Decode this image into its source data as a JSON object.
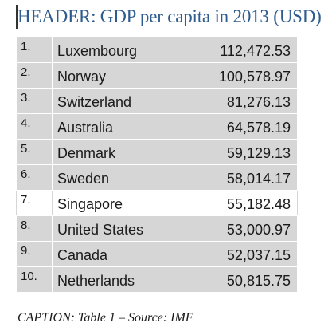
{
  "header": {
    "text": "HEADER: GDP per capita in 2013 (USD)"
  },
  "table": {
    "rows": [
      {
        "rank": "1.",
        "country": "Luxembourg",
        "value": "112,472.53"
      },
      {
        "rank": "2.",
        "country": "Norway",
        "value": "100,578.97"
      },
      {
        "rank": "3.",
        "country": "Switzerland",
        "value": "81,276.13"
      },
      {
        "rank": "4.",
        "country": "Australia",
        "value": "64,578.19"
      },
      {
        "rank": "5.",
        "country": "Denmark",
        "value": "59,129.13"
      },
      {
        "rank": "6.",
        "country": "Sweden",
        "value": "58,014.17"
      },
      {
        "rank": "7.",
        "country": "Singapore",
        "value": "55,182.48"
      },
      {
        "rank": "8.",
        "country": "United States",
        "value": "53,000.97"
      },
      {
        "rank": "9.",
        "country": "Canada",
        "value": "52,037.15"
      },
      {
        "rank": "10.",
        "country": "Netherlands",
        "value": "50,815.75"
      }
    ]
  },
  "caption": {
    "text": "CAPTION: Table 1 – Source: IMF"
  },
  "colors": {
    "header_text": "#2e5c8e",
    "row_fill": "#d6d6d6",
    "highlight_row_fill": "#ffffff"
  }
}
